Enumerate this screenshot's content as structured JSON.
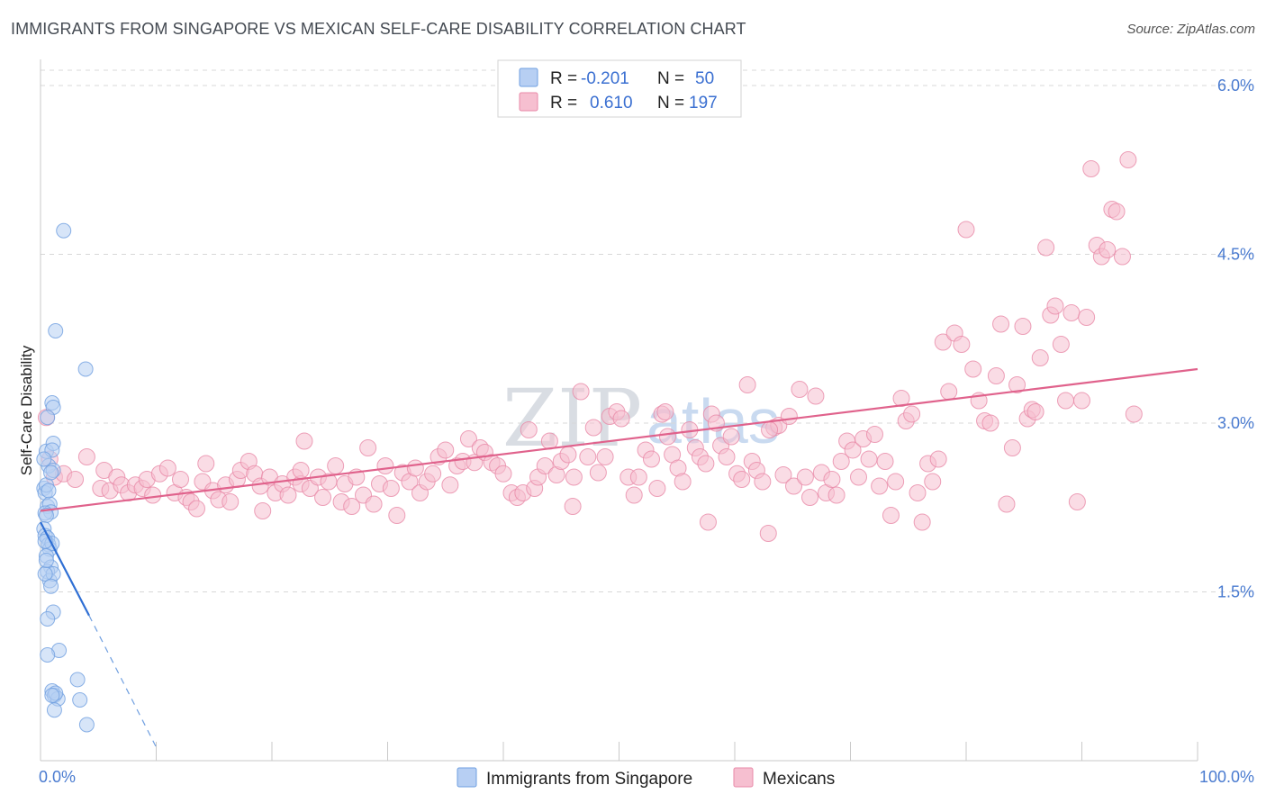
{
  "header": {
    "title": "IMMIGRANTS FROM SINGAPORE VS MEXICAN SELF-CARE DISABILITY CORRELATION CHART",
    "source": "Source: ZipAtlas.com"
  },
  "watermark": {
    "zip": "ZIP",
    "atlas": "atlas"
  },
  "colors": {
    "blue": "#6f9fe0",
    "blue_fill": "#b7cff3",
    "blue_line": "#2f6fd4",
    "pink": "#e88aa8",
    "pink_fill": "#f6bfd0",
    "pink_line": "#e0628c",
    "grid": "#d8d8d8",
    "axis_text": "#4a7bd0"
  },
  "legend": {
    "rows": [
      {
        "r_label": "R =",
        "r_value": "-0.201",
        "n_label": "N =",
        "n_value": "50",
        "color": "blue"
      },
      {
        "r_label": "R =",
        "r_value": "0.610",
        "n_label": "N =",
        "n_value": "197",
        "color": "pink"
      }
    ]
  },
  "bottom_legend": [
    {
      "label": "Immigrants from Singapore",
      "color": "blue"
    },
    {
      "label": "Mexicans",
      "color": "pink"
    }
  ],
  "chart_data": {
    "type": "scatter",
    "title": "IMMIGRANTS FROM SINGAPORE VS MEXICAN SELF-CARE DISABILITY CORRELATION CHART",
    "xlabel": "",
    "ylabel": "Self-Care Disability",
    "xlim": [
      0,
      100
    ],
    "ylim": [
      0,
      6.2
    ],
    "x_tick_labels": [
      "0.0%",
      "100.0%"
    ],
    "y_ticks": [
      1.5,
      3.0,
      4.5,
      6.0
    ],
    "y_tick_labels": [
      "1.5%",
      "3.0%",
      "4.5%",
      "6.0%"
    ],
    "grid": true,
    "series": [
      {
        "name": "Immigrants from Singapore",
        "color": "blue",
        "r": -0.201,
        "n": 50,
        "trend": {
          "x0": 0.0,
          "y0": 2.12,
          "x1": 4.2,
          "y1": 1.29,
          "dash_to_x": 10.0,
          "dash_to_y": 0.12
        },
        "points": [
          [
            2.0,
            4.71
          ],
          [
            1.3,
            3.82
          ],
          [
            3.9,
            3.48
          ],
          [
            1.0,
            3.18
          ],
          [
            1.1,
            3.14
          ],
          [
            0.6,
            3.05
          ],
          [
            0.5,
            2.75
          ],
          [
            1.1,
            2.82
          ],
          [
            1.0,
            2.76
          ],
          [
            0.7,
            2.62
          ],
          [
            1.1,
            2.58
          ],
          [
            0.3,
            2.42
          ],
          [
            0.4,
            2.38
          ],
          [
            0.6,
            2.26
          ],
          [
            0.8,
            2.28
          ],
          [
            0.9,
            2.21
          ],
          [
            0.4,
            2.2
          ],
          [
            0.5,
            2.18
          ],
          [
            0.3,
            2.06
          ],
          [
            0.4,
            2.0
          ],
          [
            0.6,
            1.98
          ],
          [
            0.7,
            1.92
          ],
          [
            0.8,
            1.88
          ],
          [
            1.0,
            1.93
          ],
          [
            0.5,
            1.82
          ],
          [
            0.9,
            1.72
          ],
          [
            0.6,
            1.68
          ],
          [
            0.8,
            1.6
          ],
          [
            1.1,
            1.66
          ],
          [
            0.4,
            1.66
          ],
          [
            1.1,
            1.32
          ],
          [
            0.6,
            1.26
          ],
          [
            1.6,
            0.98
          ],
          [
            0.6,
            0.94
          ],
          [
            3.2,
            0.72
          ],
          [
            1.0,
            0.62
          ],
          [
            1.2,
            0.58
          ],
          [
            1.5,
            0.55
          ],
          [
            1.3,
            0.6
          ],
          [
            1.0,
            0.58
          ],
          [
            3.4,
            0.54
          ],
          [
            1.2,
            0.45
          ],
          [
            4.0,
            0.32
          ],
          [
            0.5,
            2.45
          ],
          [
            0.9,
            2.56
          ],
          [
            0.3,
            2.68
          ],
          [
            0.7,
            2.4
          ],
          [
            0.5,
            1.78
          ],
          [
            0.9,
            1.55
          ],
          [
            0.4,
            1.95
          ]
        ]
      },
      {
        "name": "Mexicans",
        "color": "pink",
        "r": 0.61,
        "n": 197,
        "trend": {
          "x0": 0.0,
          "y0": 2.22,
          "x1": 100.0,
          "y1": 3.48
        },
        "points": [
          [
            0.5,
            3.05
          ],
          [
            0.8,
            2.68
          ],
          [
            1.2,
            2.52
          ],
          [
            2.0,
            2.55
          ],
          [
            3.0,
            2.5
          ],
          [
            4.0,
            2.7
          ],
          [
            5.2,
            2.42
          ],
          [
            5.5,
            2.58
          ],
          [
            6.0,
            2.4
          ],
          [
            6.6,
            2.52
          ],
          [
            7.0,
            2.45
          ],
          [
            7.6,
            2.38
          ],
          [
            8.2,
            2.45
          ],
          [
            8.8,
            2.42
          ],
          [
            9.2,
            2.5
          ],
          [
            9.7,
            2.36
          ],
          [
            10.3,
            2.55
          ],
          [
            11.0,
            2.6
          ],
          [
            11.6,
            2.38
          ],
          [
            12.1,
            2.5
          ],
          [
            12.6,
            2.34
          ],
          [
            13.0,
            2.3
          ],
          [
            13.5,
            2.24
          ],
          [
            14.0,
            2.48
          ],
          [
            14.3,
            2.64
          ],
          [
            14.9,
            2.4
          ],
          [
            15.4,
            2.32
          ],
          [
            16.0,
            2.45
          ],
          [
            16.4,
            2.3
          ],
          [
            17.0,
            2.5
          ],
          [
            17.3,
            2.58
          ],
          [
            18.0,
            2.66
          ],
          [
            18.5,
            2.55
          ],
          [
            19.0,
            2.44
          ],
          [
            19.2,
            2.22
          ],
          [
            19.8,
            2.52
          ],
          [
            20.3,
            2.38
          ],
          [
            20.9,
            2.46
          ],
          [
            21.4,
            2.36
          ],
          [
            22.0,
            2.52
          ],
          [
            22.5,
            2.46
          ],
          [
            22.8,
            2.84
          ],
          [
            23.3,
            2.42
          ],
          [
            24.0,
            2.52
          ],
          [
            24.4,
            2.34
          ],
          [
            24.9,
            2.48
          ],
          [
            25.5,
            2.62
          ],
          [
            26.0,
            2.3
          ],
          [
            26.3,
            2.46
          ],
          [
            26.9,
            2.26
          ],
          [
            27.3,
            2.52
          ],
          [
            27.9,
            2.36
          ],
          [
            28.3,
            2.78
          ],
          [
            28.8,
            2.28
          ],
          [
            29.3,
            2.46
          ],
          [
            29.8,
            2.62
          ],
          [
            30.3,
            2.42
          ],
          [
            30.8,
            2.18
          ],
          [
            31.3,
            2.56
          ],
          [
            31.9,
            2.48
          ],
          [
            32.4,
            2.6
          ],
          [
            32.8,
            2.38
          ],
          [
            33.4,
            2.48
          ],
          [
            33.9,
            2.55
          ],
          [
            34.4,
            2.7
          ],
          [
            35.0,
            2.76
          ],
          [
            35.4,
            2.45
          ],
          [
            36.0,
            2.62
          ],
          [
            36.5,
            2.66
          ],
          [
            37.0,
            2.86
          ],
          [
            37.5,
            2.65
          ],
          [
            38.0,
            2.78
          ],
          [
            38.4,
            2.74
          ],
          [
            39.0,
            2.65
          ],
          [
            39.5,
            2.62
          ],
          [
            40.0,
            2.55
          ],
          [
            40.7,
            2.38
          ],
          [
            41.2,
            2.34
          ],
          [
            41.7,
            2.38
          ],
          [
            42.2,
            2.94
          ],
          [
            42.7,
            2.42
          ],
          [
            43.0,
            2.52
          ],
          [
            43.6,
            2.62
          ],
          [
            44.0,
            2.84
          ],
          [
            44.6,
            2.54
          ],
          [
            45.0,
            2.66
          ],
          [
            45.6,
            2.72
          ],
          [
            46.1,
            2.52
          ],
          [
            46.7,
            3.28
          ],
          [
            47.3,
            2.7
          ],
          [
            47.8,
            2.96
          ],
          [
            48.2,
            2.56
          ],
          [
            48.8,
            2.7
          ],
          [
            49.2,
            3.06
          ],
          [
            49.8,
            3.1
          ],
          [
            50.2,
            3.04
          ],
          [
            50.8,
            2.52
          ],
          [
            51.3,
            2.36
          ],
          [
            51.7,
            2.52
          ],
          [
            52.3,
            2.76
          ],
          [
            52.8,
            2.68
          ],
          [
            53.3,
            2.42
          ],
          [
            53.7,
            3.08
          ],
          [
            54.2,
            2.88
          ],
          [
            54.6,
            2.72
          ],
          [
            55.1,
            2.6
          ],
          [
            55.5,
            2.48
          ],
          [
            56.1,
            2.94
          ],
          [
            56.6,
            2.78
          ],
          [
            57.0,
            2.7
          ],
          [
            57.5,
            2.64
          ],
          [
            57.7,
            2.12
          ],
          [
            58.0,
            3.08
          ],
          [
            58.4,
            3.0
          ],
          [
            58.8,
            2.8
          ],
          [
            59.3,
            2.7
          ],
          [
            59.7,
            2.88
          ],
          [
            60.2,
            2.55
          ],
          [
            60.6,
            2.5
          ],
          [
            61.1,
            3.34
          ],
          [
            61.5,
            2.66
          ],
          [
            61.9,
            2.58
          ],
          [
            62.4,
            2.48
          ],
          [
            62.9,
            2.02
          ],
          [
            63.4,
            2.96
          ],
          [
            63.8,
            2.98
          ],
          [
            64.2,
            2.54
          ],
          [
            64.7,
            3.06
          ],
          [
            65.1,
            2.44
          ],
          [
            65.6,
            3.3
          ],
          [
            66.1,
            2.52
          ],
          [
            66.5,
            2.34
          ],
          [
            67.0,
            3.24
          ],
          [
            67.5,
            2.56
          ],
          [
            67.9,
            2.38
          ],
          [
            68.4,
            2.5
          ],
          [
            68.8,
            2.36
          ],
          [
            69.2,
            2.66
          ],
          [
            69.7,
            2.84
          ],
          [
            70.2,
            2.76
          ],
          [
            70.7,
            2.52
          ],
          [
            71.1,
            2.86
          ],
          [
            71.6,
            2.68
          ],
          [
            72.1,
            2.9
          ],
          [
            72.5,
            2.44
          ],
          [
            73.0,
            2.66
          ],
          [
            73.5,
            2.18
          ],
          [
            73.9,
            2.48
          ],
          [
            74.4,
            3.22
          ],
          [
            74.8,
            3.02
          ],
          [
            75.3,
            3.08
          ],
          [
            75.8,
            2.38
          ],
          [
            76.2,
            2.12
          ],
          [
            76.7,
            2.64
          ],
          [
            77.1,
            2.48
          ],
          [
            77.6,
            2.68
          ],
          [
            78.0,
            3.72
          ],
          [
            78.5,
            3.28
          ],
          [
            79.0,
            3.8
          ],
          [
            79.6,
            3.7
          ],
          [
            80.0,
            4.72
          ],
          [
            80.6,
            3.48
          ],
          [
            81.1,
            3.2
          ],
          [
            81.6,
            3.02
          ],
          [
            82.1,
            3.0
          ],
          [
            82.6,
            3.42
          ],
          [
            83.0,
            3.88
          ],
          [
            83.5,
            2.28
          ],
          [
            84.0,
            2.78
          ],
          [
            84.4,
            3.34
          ],
          [
            84.9,
            3.86
          ],
          [
            85.3,
            3.04
          ],
          [
            85.7,
            3.12
          ],
          [
            86.0,
            3.1
          ],
          [
            86.4,
            3.58
          ],
          [
            86.9,
            4.56
          ],
          [
            87.3,
            3.96
          ],
          [
            87.7,
            4.04
          ],
          [
            88.2,
            3.7
          ],
          [
            88.6,
            3.2
          ],
          [
            89.1,
            3.98
          ],
          [
            89.6,
            2.3
          ],
          [
            90.0,
            3.2
          ],
          [
            90.4,
            3.94
          ],
          [
            90.8,
            5.26
          ],
          [
            91.3,
            4.58
          ],
          [
            91.7,
            4.48
          ],
          [
            92.2,
            4.54
          ],
          [
            92.6,
            4.9
          ],
          [
            93.0,
            4.88
          ],
          [
            93.5,
            4.48
          ],
          [
            94.0,
            5.34
          ],
          [
            94.5,
            3.08
          ],
          [
            22.5,
            2.58
          ],
          [
            46.0,
            2.26
          ],
          [
            54.0,
            3.1
          ],
          [
            63.0,
            2.94
          ]
        ]
      }
    ]
  }
}
